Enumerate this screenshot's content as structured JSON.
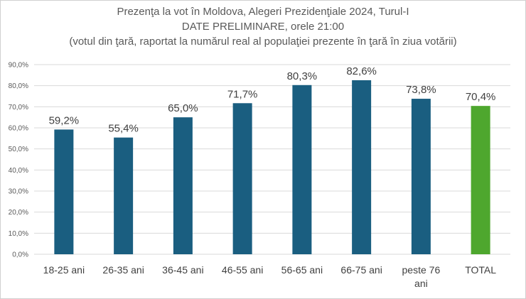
{
  "chart_data": {
    "type": "bar",
    "title": "Prezenţa la vot în Moldova, Alegeri Prezidenţiale 2024, Turul-I",
    "subtitle": "DATE PRELIMINARE,  orele 21:00",
    "subtitle2": "(votul din ţară,  raportat la numărul real al populaţiei prezente în ţară în ziua votării)",
    "categories": [
      "18-25 ani",
      "26-35 ani",
      "36-45 ani",
      "46-55 ani",
      "56-65 ani",
      "66-75 ani",
      "peste 76 ani",
      "TOTAL"
    ],
    "values": [
      59.2,
      55.4,
      65.0,
      71.7,
      80.3,
      82.6,
      73.8,
      70.4
    ],
    "data_labels": [
      "59,2%",
      "55,4%",
      "65,0%",
      "71,7%",
      "80,3%",
      "82,6%",
      "73,8%",
      "70,4%"
    ],
    "y_ticks": [
      "0,0%",
      "10,0%",
      "20,0%",
      "30,0%",
      "40,0%",
      "50,0%",
      "60,0%",
      "70,0%",
      "80,0%",
      "90,0%"
    ],
    "ylim": [
      0,
      90
    ],
    "xlabel": "",
    "ylabel": "",
    "grid": true,
    "colors": {
      "bar": "#1a5e80",
      "total": "#4ea72e",
      "grid": "#d9d9d9"
    }
  }
}
